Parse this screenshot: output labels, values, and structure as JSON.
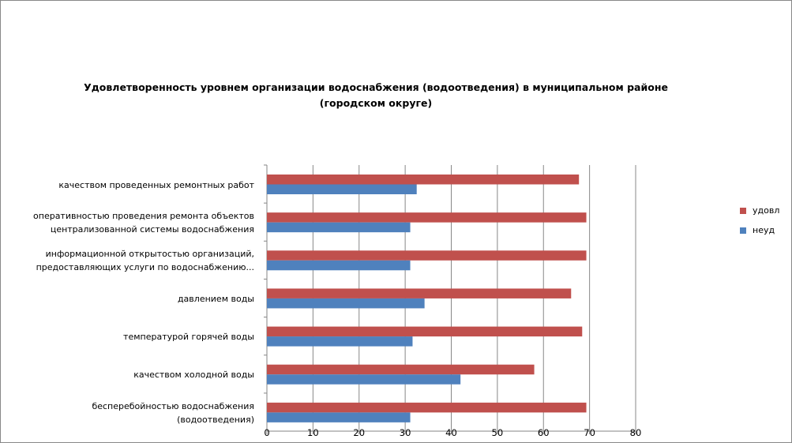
{
  "chart_data": {
    "type": "bar",
    "orientation": "horizontal",
    "title": [
      "Удовлетворенность уровнем организации водоснабжения (водоотведения) в муниципальном районе",
      "(городском округе)"
    ],
    "categories": [
      [
        "качеством  проведенных  ремонтных работ"
      ],
      [
        "оперативностью  проведения  ремонта  объектов",
        "централизованной системы водоснабжения"
      ],
      [
        "информационной  открытостью организаций,",
        "предоставляющих услуги по водоснабжению..."
      ],
      [
        "давлением  воды"
      ],
      [
        "температурой  горячей воды"
      ],
      [
        "качеством  холодной воды"
      ],
      [
        "бесперебойностью  водоснабжения",
        "(водоотведения)"
      ]
    ],
    "series": [
      {
        "name": "удовл",
        "color": "#C0504D",
        "values": [
          67.7,
          69.3,
          69.3,
          66.0,
          68.4,
          58.0,
          69.3
        ]
      },
      {
        "name": "неуд",
        "color": "#4F81BD",
        "values": [
          32.5,
          31.1,
          31.1,
          34.2,
          31.6,
          42.0,
          31.1
        ]
      }
    ],
    "xlim": [
      0,
      80
    ],
    "xticks": [
      "0",
      "10",
      "20",
      "30",
      "40",
      "50",
      "60",
      "70",
      "80"
    ],
    "grid": true,
    "legend": "right"
  }
}
